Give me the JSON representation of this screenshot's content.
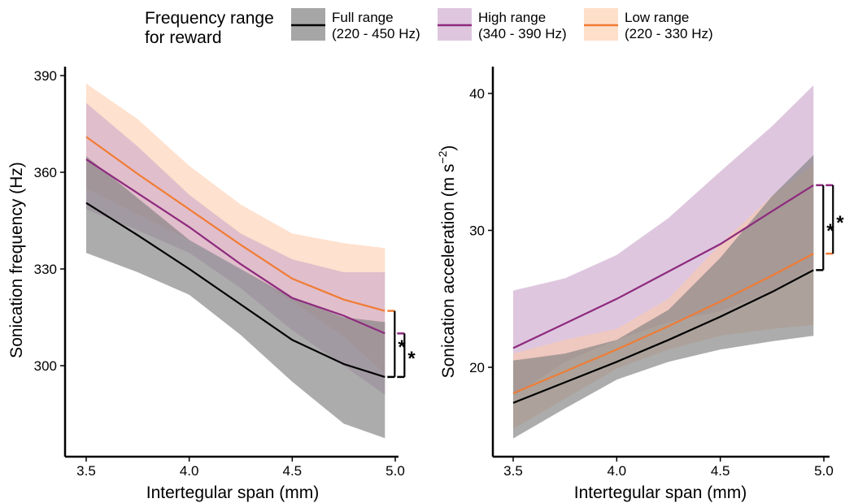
{
  "legend": {
    "title_line1": "Frequency range",
    "title_line2": "for reward",
    "items": [
      {
        "key": "full",
        "label_line1": "Full range",
        "label_line2": "(220 - 450 Hz)",
        "color": "#000000",
        "band_color": "#808080"
      },
      {
        "key": "high",
        "label_line1": "High range",
        "label_line2": "(340 - 390 Hz)",
        "color": "#8e2a7e",
        "band_color": "#c8a2c8"
      },
      {
        "key": "low",
        "label_line1": "Low range",
        "label_line2": "(220 - 330 Hz)",
        "color": "#f07c35",
        "band_color": "#fdc9a6"
      }
    ]
  },
  "chart_data": [
    {
      "type": "line",
      "title": "",
      "xlabel": "Intertegular span (mm)",
      "ylabel": "Sonication frequency (Hz)",
      "xlim": [
        3.4,
        5.02
      ],
      "ylim": [
        272,
        392
      ],
      "xticks": [
        "3.5",
        "4.0",
        "4.5",
        "5.0"
      ],
      "yticks": [
        "300",
        "330",
        "360",
        "390"
      ],
      "x": [
        3.5,
        3.75,
        4.0,
        4.25,
        4.5,
        4.75,
        4.95
      ],
      "series": [
        {
          "key": "full",
          "values": [
            350.5,
            340.5,
            330.0,
            319.0,
            308.0,
            300.5,
            296.5
          ],
          "lower": [
            335.0,
            329.0,
            322.0,
            309.5,
            295.0,
            282.0,
            277.5
          ],
          "upper": [
            365.0,
            352.0,
            339.0,
            330.0,
            321.0,
            315.0,
            313.5
          ]
        },
        {
          "key": "high",
          "values": [
            364.0,
            353.5,
            343.0,
            331.5,
            321.0,
            315.5,
            310.0
          ],
          "lower": [
            348.5,
            342.0,
            335.0,
            324.0,
            311.0,
            300.0,
            291.0
          ],
          "upper": [
            381.5,
            368.0,
            353.0,
            341.0,
            333.0,
            329.0,
            329.0
          ]
        },
        {
          "key": "low",
          "values": [
            371.0,
            359.5,
            348.5,
            337.5,
            327.0,
            320.5,
            317.0
          ],
          "lower": [
            355.0,
            347.0,
            339.0,
            330.0,
            320.0,
            309.0,
            297.5
          ],
          "upper": [
            387.5,
            376.5,
            362.0,
            350.0,
            341.0,
            338.0,
            336.5
          ]
        }
      ],
      "significance": [
        {
          "from": "low",
          "to": "full",
          "label": "*"
        },
        {
          "from": "high",
          "to": "full",
          "label": "*"
        }
      ]
    },
    {
      "type": "line",
      "title": "",
      "xlabel": "Intertegular span (mm)",
      "ylabel": "Sonication acceleration (m s",
      "ylabel_superscript": "−2",
      "ylabel_suffix": ")",
      "xlim": [
        3.4,
        5.02
      ],
      "ylim": [
        13.8,
        42.0
      ],
      "xticks": [
        "3.5",
        "4.0",
        "4.5",
        "5.0"
      ],
      "yticks": [
        "20",
        "30",
        "40"
      ],
      "x": [
        3.5,
        3.75,
        4.0,
        4.25,
        4.5,
        4.75,
        4.95
      ],
      "series": [
        {
          "key": "full",
          "values": [
            17.4,
            18.9,
            20.4,
            22.0,
            23.7,
            25.5,
            27.1
          ],
          "lower": [
            14.8,
            17.0,
            19.1,
            20.4,
            21.3,
            21.9,
            22.3
          ],
          "upper": [
            20.5,
            21.0,
            22.0,
            24.2,
            28.0,
            32.5,
            35.5
          ]
        },
        {
          "key": "high",
          "values": [
            21.4,
            23.2,
            25.0,
            27.0,
            29.0,
            31.4,
            33.3
          ],
          "lower": [
            17.9,
            20.4,
            22.0,
            23.3,
            24.1,
            25.5,
            27.3
          ],
          "upper": [
            25.6,
            26.5,
            28.2,
            30.9,
            34.3,
            37.6,
            40.6
          ]
        },
        {
          "key": "low",
          "values": [
            18.1,
            19.7,
            21.3,
            23.0,
            24.8,
            26.7,
            28.3
          ],
          "lower": [
            15.5,
            17.7,
            19.9,
            21.3,
            22.3,
            22.8,
            23.1
          ],
          "upper": [
            21.0,
            22.0,
            22.8,
            25.0,
            29.0,
            32.5,
            34.8
          ]
        }
      ],
      "significance": [
        {
          "from": "high",
          "to": "full",
          "label": "*"
        },
        {
          "from": "high",
          "to": "low",
          "label": "*"
        }
      ]
    }
  ]
}
